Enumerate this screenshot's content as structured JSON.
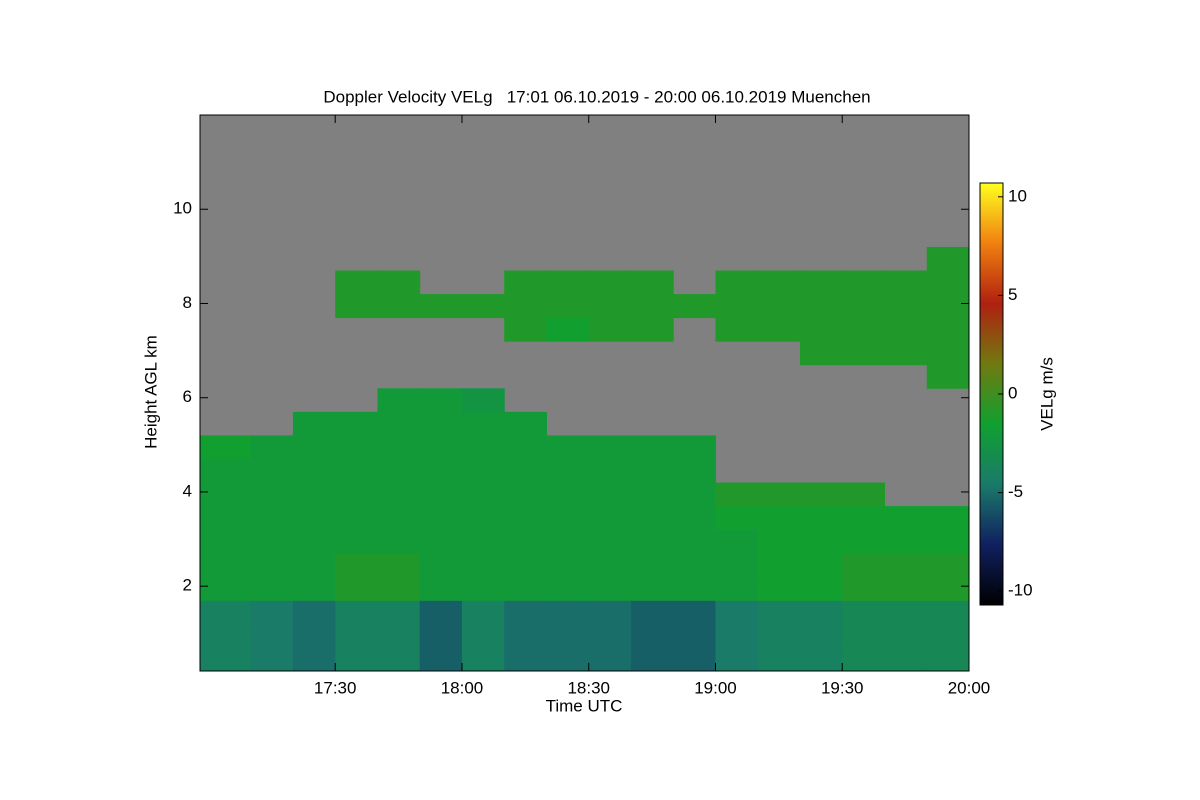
{
  "chart_data": {
    "type": "heatmap",
    "title": "Doppler Velocity VELg   17:01 06.10.2019 - 20:00 06.10.2019 Muenchen",
    "xlabel": "Time UTC",
    "ylabel": "Height AGL km",
    "colorbar_label": "VELg m/s",
    "xlim": [
      1018,
      1200
    ],
    "xticks": [
      {
        "value": 1050,
        "label": "17:30"
      },
      {
        "value": 1080,
        "label": "18:00"
      },
      {
        "value": 1110,
        "label": "18:30"
      },
      {
        "value": 1140,
        "label": "19:00"
      },
      {
        "value": 1170,
        "label": "19:30"
      },
      {
        "value": 1200,
        "label": "20:00"
      }
    ],
    "ylim": [
      0.2,
      12
    ],
    "yticks": [
      2,
      4,
      6,
      8,
      10
    ],
    "zlim": [
      -10.7,
      10.7
    ],
    "zticks": [
      10,
      5,
      0,
      -5,
      -10
    ],
    "colorscale": [
      "#000000",
      "#102060",
      "#1a7a6a",
      "#10a030",
      "#707a10",
      "#b02010",
      "#f08010",
      "#ffff20"
    ],
    "background": "#808080",
    "x_bins": [
      1018,
      1030,
      1040,
      1050,
      1060,
      1070,
      1080,
      1090,
      1100,
      1110,
      1120,
      1130,
      1140,
      1150,
      1160,
      1170,
      1180,
      1190,
      1200
    ],
    "y_bins": [
      0.2,
      0.7,
      1.2,
      1.7,
      2.2,
      2.7,
      3.2,
      3.7,
      4.2,
      4.7,
      5.2,
      5.7,
      6.2,
      6.7,
      7.2,
      7.7,
      8.2,
      8.7,
      9.2
    ],
    "z": [
      [
        -4,
        -4.5,
        -5,
        -4,
        -4,
        -5.5,
        -4,
        -5,
        -5,
        -5,
        -5.5,
        -5.5,
        -4.5,
        -4,
        -4,
        -3.5,
        -3.5,
        -3.5
      ],
      [
        -4,
        -4.5,
        -5,
        -4,
        -4,
        -5.5,
        -4,
        -5,
        -5,
        -5,
        -5.5,
        -5.5,
        -4.5,
        -4,
        -4,
        -3.5,
        -3.5,
        -3.5
      ],
      [
        -4,
        -4.5,
        -5,
        -4,
        -4,
        -5.5,
        -4,
        -5,
        -5,
        -5,
        -5.5,
        -5.5,
        -4.5,
        -4,
        -4,
        -3.5,
        -3.5,
        -3.5
      ],
      [
        -2,
        -2,
        -2,
        -1,
        -1,
        -2,
        -2,
        -2,
        -2,
        -2,
        -2,
        -2,
        -2,
        -1.5,
        -1.5,
        -1,
        -1,
        -1
      ],
      [
        -2,
        -2,
        -2,
        -1,
        -1,
        -2,
        -2,
        -2,
        -2,
        -2,
        -2,
        -2,
        -2,
        -1.5,
        -1.5,
        -1,
        -1,
        -1
      ],
      [
        -2,
        -2,
        -2,
        -2,
        -2,
        -2,
        -2,
        -2,
        -2,
        -2,
        -2,
        -2,
        -2,
        -1.5,
        -1.5,
        -1.5,
        -1.5,
        -1.5
      ],
      [
        -2,
        -2,
        -2,
        -2,
        -2,
        -2,
        -2,
        -2,
        -2,
        -2,
        -2,
        -2,
        -1.5,
        -1.5,
        -1.5,
        -1.5,
        -1.5,
        -1.5
      ],
      [
        -2,
        -2,
        -2,
        -2,
        -2,
        -2,
        -2,
        -2,
        -2,
        -2,
        -2,
        -2,
        -1,
        -1,
        -1,
        -1,
        null,
        null
      ],
      [
        -2,
        -2,
        -2,
        -2,
        -2,
        -2,
        -2,
        -2,
        -2,
        -2,
        -2,
        -2,
        null,
        null,
        null,
        null,
        null,
        null
      ],
      [
        -1.5,
        -2,
        -2,
        -2,
        -2,
        -2,
        -2,
        -2,
        -2,
        -2,
        -2,
        -2,
        null,
        null,
        null,
        null,
        null,
        null
      ],
      [
        null,
        null,
        -2,
        -2,
        -2,
        -2,
        -2,
        -2,
        null,
        null,
        null,
        null,
        null,
        null,
        null,
        null,
        null,
        null
      ],
      [
        null,
        null,
        null,
        null,
        -2,
        -2,
        -2.5,
        null,
        null,
        null,
        null,
        null,
        null,
        null,
        null,
        null,
        null,
        null
      ],
      [
        null,
        null,
        null,
        null,
        null,
        null,
        null,
        null,
        null,
        null,
        null,
        null,
        null,
        null,
        null,
        null,
        null,
        -1
      ],
      [
        null,
        null,
        null,
        null,
        null,
        null,
        null,
        null,
        null,
        null,
        null,
        null,
        null,
        null,
        -1,
        -1,
        -1,
        -1
      ],
      [
        null,
        null,
        null,
        null,
        null,
        null,
        null,
        -1,
        -1.5,
        -1,
        -1,
        null,
        -1,
        -1,
        -1,
        -1,
        -1,
        -1
      ],
      [
        null,
        null,
        null,
        -1,
        -1,
        -1,
        -1,
        -1,
        -1,
        -1,
        -1,
        -1,
        -1,
        -1,
        -1,
        -1,
        -1,
        -1
      ],
      [
        null,
        null,
        null,
        -1,
        -1,
        null,
        null,
        -1,
        -1,
        -1,
        -1,
        null,
        -1,
        -1,
        -1,
        -1,
        -1,
        -1
      ],
      [
        null,
        null,
        null,
        null,
        null,
        null,
        null,
        null,
        null,
        null,
        null,
        null,
        null,
        null,
        null,
        null,
        null,
        -1
      ]
    ]
  }
}
